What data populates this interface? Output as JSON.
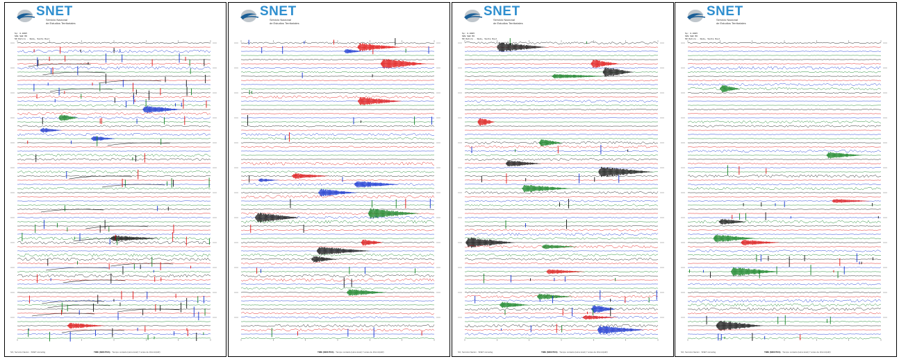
{
  "panels": [
    {
      "logo_text": "SNET",
      "logo_sub_line1": "Servicio Nacional",
      "logo_sub_line2": "de Estudios Territoriales",
      "header_line1": "Sp: 0.0095",
      "header_line2": "SPE SHZ MO",
      "header_line3": "SO Ratsro · Nodo, Santa Roel",
      "footer_left": "SO, Servicio Nacion · SNET sismológ",
      "footer_title": "TIME (MINUTES)",
      "footer_rest": "· Tiempo contado (Hora local) Y antes de 1fixmin(HR)",
      "style": "dense-spiky",
      "seed": 11
    },
    {
      "logo_text": "SNET",
      "logo_sub_line1": "Servicio Nacional",
      "logo_sub_line2": "de Estudios Territoriales",
      "header_line1": "",
      "header_line2": "",
      "header_line3": "",
      "footer_left": "",
      "footer_title": "TIME (MINUTES)",
      "footer_rest": "· Tiempo contado (Hora local) Y antes de 1fixmin(HR)",
      "style": "noisy-events",
      "seed": 23
    },
    {
      "logo_text": "SNET",
      "logo_sub_line1": "Servicio Nacional",
      "logo_sub_line2": "de Estudios Territoriales",
      "header_line1": "Sp: 0.0095",
      "header_line2": "SPE SHZ MO",
      "header_line3": "SO Ratsro · Nodo, Santa Roel",
      "footer_left": "SO, Servicio Nacion · SNET sismológ",
      "footer_title": "TIME (MINUTES)",
      "footer_rest": "· Tiempo contado (Hora local) Y antes de 1fixmin(HR)",
      "style": "big-events",
      "seed": 37
    },
    {
      "logo_text": "SNET",
      "logo_sub_line1": "Servicio Nacional",
      "logo_sub_line2": "de Estudios Territoriales",
      "header_line1": "Sp: 0.0095",
      "header_line2": "SPE SHZ MO",
      "header_line3": "SO Ratsro · Nodo, Santa Roel",
      "footer_left": "SO, Servicio Nacion · SNET sismológ",
      "footer_title": "TIME (MINUTES)",
      "footer_rest": "· Tiempo contado (Hora local) Y antes de 1fixmin(HR)",
      "style": "sparse-events",
      "seed": 53
    }
  ],
  "trace_colors": [
    "#111111",
    "#e01010",
    "#1030d0",
    "#108020"
  ],
  "logo_colors": {
    "text": "#2f8fcf",
    "swoosh": "#1a5e96",
    "globe": "#bfc6cc"
  }
}
